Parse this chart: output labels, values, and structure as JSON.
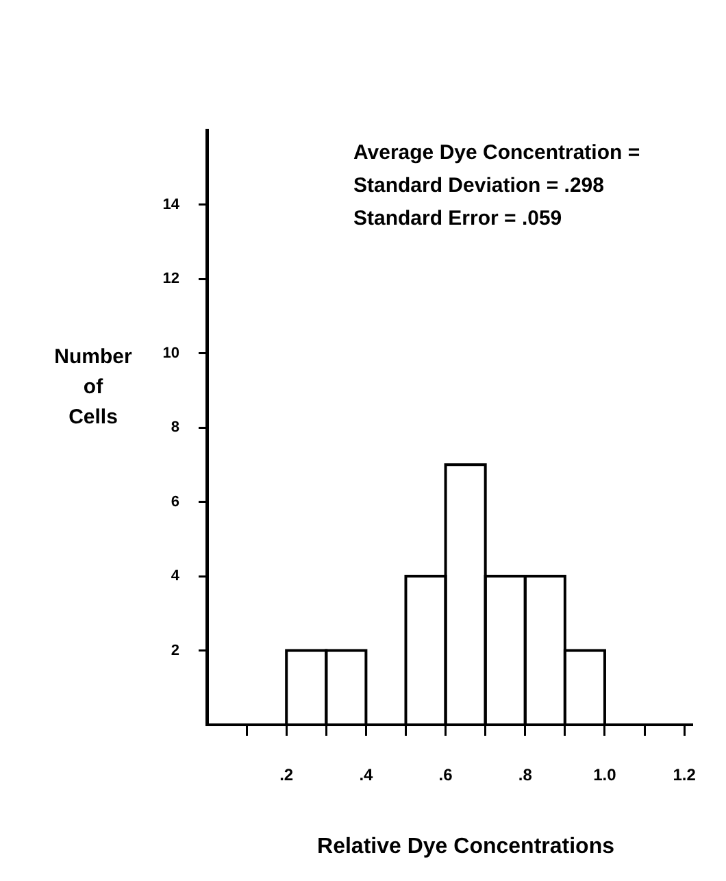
{
  "chart_data": {
    "type": "histogram",
    "xlabel": "Relative Dye Concentrations",
    "ylabel": "Number of Cells",
    "annotations": [
      "Average Dye Concentration =",
      "Standard Deviation = .298",
      "Standard Error = .059"
    ],
    "bins": [
      0.2,
      0.3,
      0.4,
      0.5,
      0.6,
      0.7,
      0.8,
      0.9,
      1.0
    ],
    "values": [
      2,
      2,
      0,
      4,
      7,
      4,
      4,
      2
    ],
    "color": "#000000",
    "xlim": [
      0,
      1.22
    ],
    "xticks": [
      {
        "value": 0.1,
        "label": null
      },
      {
        "value": 0.2,
        "label": ".2"
      },
      {
        "value": 0.3,
        "label": null
      },
      {
        "value": 0.4,
        "label": ".4"
      },
      {
        "value": 0.5,
        "label": null
      },
      {
        "value": 0.6,
        "label": ".6"
      },
      {
        "value": 0.7,
        "label": null
      },
      {
        "value": 0.8,
        "label": ".8"
      },
      {
        "value": 0.9,
        "label": null
      },
      {
        "value": 1.0,
        "label": "1.0"
      },
      {
        "value": 1.1,
        "label": null
      },
      {
        "value": 1.2,
        "label": "1.2"
      }
    ],
    "ylim": [
      0,
      16
    ],
    "yticks": [
      2,
      4,
      6,
      8,
      10,
      12,
      14
    ],
    "grid": false,
    "legend": false
  }
}
